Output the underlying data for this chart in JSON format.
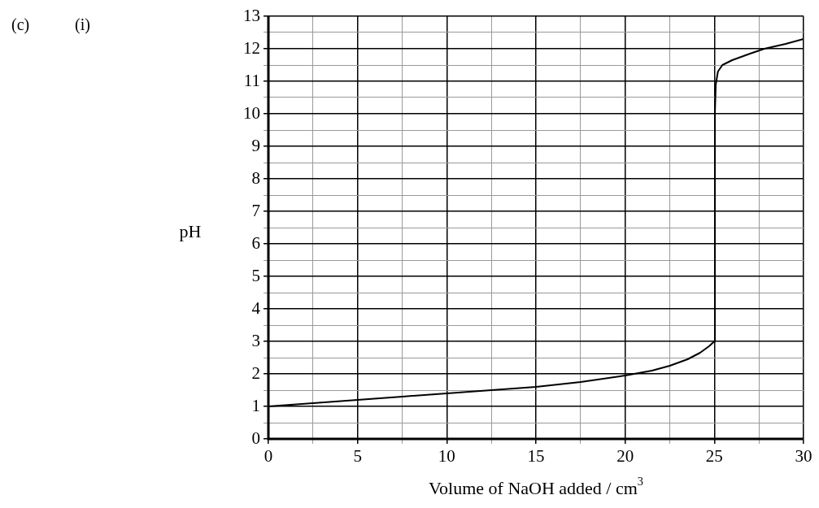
{
  "chart_data": {
    "type": "line",
    "xlabel": "Volume of NaOH added / cm$^{3}$",
    "ylabel": "pH",
    "annotations": [
      "(c)",
      "(i)"
    ],
    "series": [
      {
        "color": "#000000",
        "x": [
          0,
          2.5,
          5,
          7.5,
          10,
          12.5,
          15,
          17.5,
          20,
          21.5,
          22.5,
          23.5,
          24.2,
          24.7,
          25,
          25.03,
          25.08,
          25.2,
          25.45,
          26,
          27,
          27.8,
          29,
          30
        ],
        "values": [
          1.0,
          1.1,
          1.2,
          1.3,
          1.4,
          1.5,
          1.6,
          1.75,
          1.95,
          2.1,
          2.25,
          2.45,
          2.65,
          2.85,
          3.0,
          10,
          10.9,
          11.3,
          11.5,
          11.65,
          11.85,
          12.0,
          12.15,
          12.3
        ]
      }
    ],
    "xlim": [
      0,
      30
    ],
    "xticks": [
      0,
      {
        "value": 2.5,
        "label": null
      },
      5,
      {
        "value": 7.5,
        "label": null
      },
      10,
      {
        "value": 12.5,
        "label": null
      },
      15,
      {
        "value": 17.5,
        "label": null
      },
      20,
      {
        "value": 22.5,
        "label": null
      },
      25,
      {
        "value": 27.5,
        "label": null
      },
      30
    ],
    "ylim": [
      0,
      13
    ],
    "yticks": [
      0,
      {
        "value": 0.5,
        "label": null
      },
      1,
      {
        "value": 1.5,
        "label": null
      },
      2,
      {
        "value": 2.5,
        "label": null
      },
      3,
      {
        "value": 3.5,
        "label": null
      },
      4,
      {
        "value": 4.5,
        "label": null
      },
      5,
      {
        "value": 5.5,
        "label": null
      },
      6,
      {
        "value": 6.5,
        "label": null
      },
      7,
      {
        "value": 7.5,
        "label": null
      },
      8,
      {
        "value": 8.5,
        "label": null
      },
      9,
      {
        "value": 9.5,
        "label": null
      },
      10,
      {
        "value": 10.5,
        "label": null
      },
      11,
      {
        "value": 11.5,
        "label": null
      },
      12,
      {
        "value": 12.5,
        "label": null
      },
      13
    ],
    "grid": true,
    "legend": false,
    "marker": "none",
    "line_style": "solid"
  }
}
